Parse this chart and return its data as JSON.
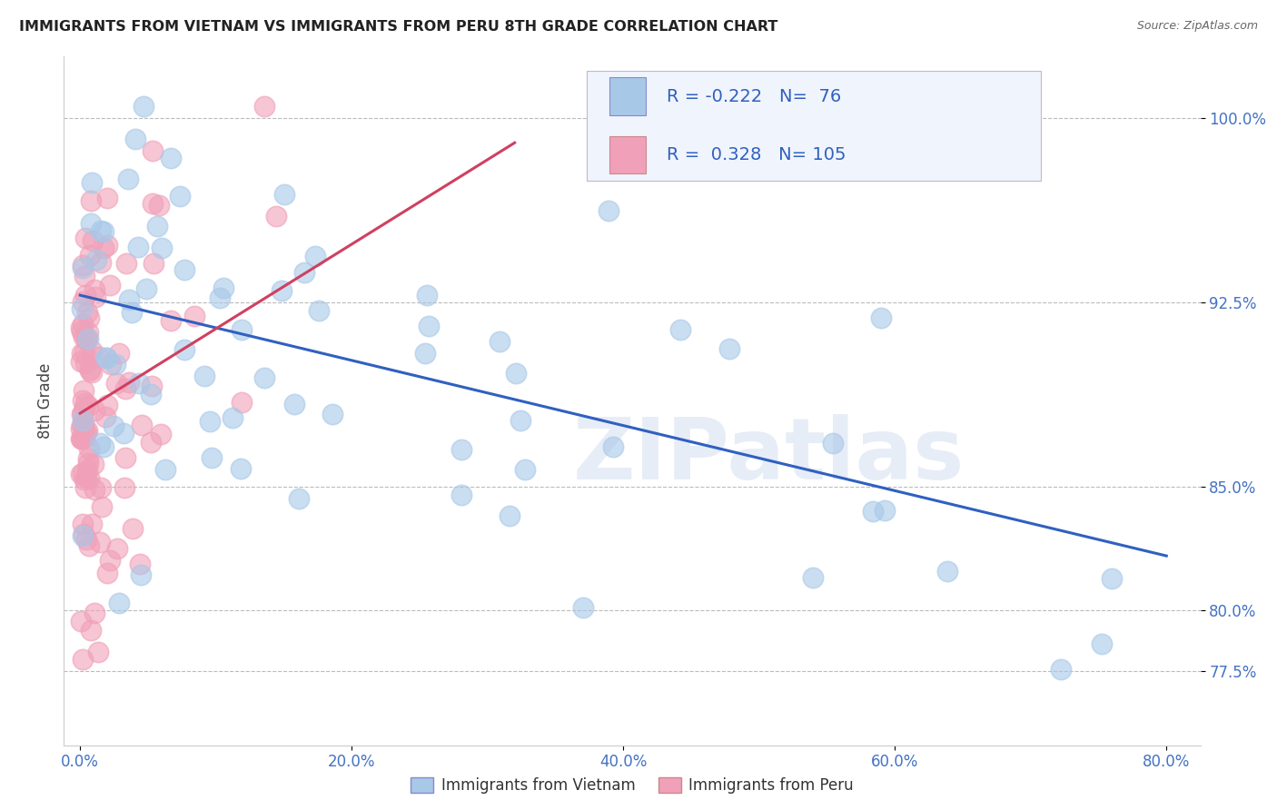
{
  "title": "IMMIGRANTS FROM VIETNAM VS IMMIGRANTS FROM PERU 8TH GRADE CORRELATION CHART",
  "source": "Source: ZipAtlas.com",
  "ylabel": "8th Grade",
  "x_tick_labels": [
    "0.0%",
    "20.0%",
    "40.0%",
    "60.0%",
    "80.0%"
  ],
  "x_tick_positions": [
    0.0,
    0.2,
    0.4,
    0.6,
    0.8
  ],
  "y_tick_labels": [
    "77.5%",
    "80.0%",
    "85.0%",
    "92.5%",
    "100.0%"
  ],
  "y_tick_positions": [
    0.775,
    0.8,
    0.85,
    0.925,
    1.0
  ],
  "ylim": [
    0.745,
    1.025
  ],
  "xlim": [
    -0.012,
    0.825
  ],
  "legend_R_vietnam": "-0.222",
  "legend_N_vietnam": "76",
  "legend_R_peru": "0.328",
  "legend_N_peru": "105",
  "color_vietnam": "#a8c8e8",
  "color_peru": "#f0a0b8",
  "trendline_color_vietnam": "#3060c0",
  "trendline_color_peru": "#d04060",
  "watermark": "ZIPatlas",
  "background_color": "#ffffff",
  "grid_color": "#cccccc",
  "legend_labels": [
    "Immigrants from Vietnam",
    "Immigrants from Peru"
  ],
  "vietnam_trendline_x": [
    0.0,
    0.8
  ],
  "vietnam_trendline_y": [
    0.928,
    0.822
  ],
  "peru_trendline_x": [
    0.0,
    0.32
  ],
  "peru_trendline_y": [
    0.88,
    0.99
  ]
}
